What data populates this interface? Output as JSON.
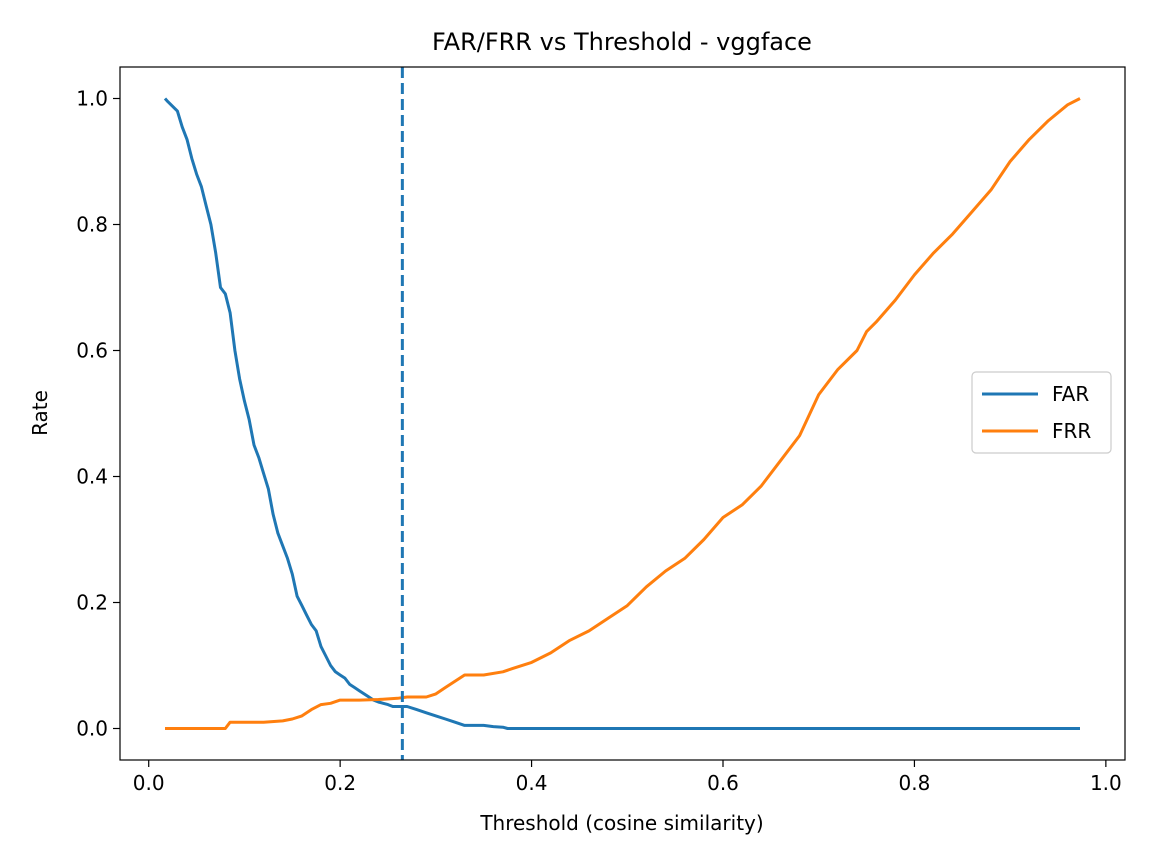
{
  "chart_data": {
    "type": "line",
    "title": "FAR/FRR vs Threshold - vggface",
    "xlabel": "Threshold (cosine similarity)",
    "ylabel": "Rate",
    "xlim": [
      -0.03,
      1.02
    ],
    "ylim": [
      -0.05,
      1.05
    ],
    "xticks": [
      0.0,
      0.2,
      0.4,
      0.6,
      0.8,
      1.0
    ],
    "xtick_labels": [
      "0.0",
      "0.2",
      "0.4",
      "0.6",
      "0.8",
      "1.0"
    ],
    "yticks": [
      0.0,
      0.2,
      0.4,
      0.6,
      0.8,
      1.0
    ],
    "ytick_labels": [
      "0.0",
      "0.2",
      "0.4",
      "0.6",
      "0.8",
      "1.0"
    ],
    "grid": false,
    "legend_position": "center-right",
    "threshold_line": {
      "x": 0.265,
      "style": "dashed",
      "color": "#1f77b4"
    },
    "series": [
      {
        "name": "FAR",
        "color": "#1f77b4",
        "x": [
          0.017,
          0.02,
          0.03,
          0.035,
          0.04,
          0.045,
          0.05,
          0.055,
          0.06,
          0.065,
          0.07,
          0.075,
          0.08,
          0.085,
          0.09,
          0.095,
          0.1,
          0.105,
          0.11,
          0.115,
          0.12,
          0.125,
          0.13,
          0.135,
          0.14,
          0.145,
          0.15,
          0.155,
          0.16,
          0.165,
          0.17,
          0.175,
          0.18,
          0.185,
          0.19,
          0.195,
          0.2,
          0.205,
          0.21,
          0.215,
          0.22,
          0.225,
          0.23,
          0.235,
          0.24,
          0.245,
          0.25,
          0.255,
          0.26,
          0.265,
          0.27,
          0.28,
          0.29,
          0.3,
          0.31,
          0.32,
          0.33,
          0.34,
          0.35,
          0.36,
          0.37,
          0.375,
          0.38,
          0.5,
          0.6,
          0.7,
          0.8,
          0.9,
          0.973
        ],
        "y": [
          1.0,
          0.995,
          0.98,
          0.955,
          0.935,
          0.905,
          0.88,
          0.86,
          0.83,
          0.8,
          0.755,
          0.7,
          0.69,
          0.66,
          0.6,
          0.555,
          0.52,
          0.49,
          0.45,
          0.43,
          0.405,
          0.38,
          0.34,
          0.31,
          0.29,
          0.27,
          0.245,
          0.21,
          0.195,
          0.18,
          0.165,
          0.155,
          0.13,
          0.115,
          0.1,
          0.09,
          0.085,
          0.08,
          0.07,
          0.065,
          0.06,
          0.055,
          0.05,
          0.045,
          0.042,
          0.04,
          0.038,
          0.035,
          0.035,
          0.035,
          0.035,
          0.03,
          0.025,
          0.02,
          0.015,
          0.01,
          0.005,
          0.005,
          0.005,
          0.003,
          0.002,
          0.0,
          0.0,
          0.0,
          0.0,
          0.0,
          0.0,
          0.0,
          0.0
        ]
      },
      {
        "name": "FRR",
        "color": "#ff7f0e",
        "x": [
          0.017,
          0.05,
          0.08,
          0.085,
          0.1,
          0.12,
          0.14,
          0.15,
          0.16,
          0.17,
          0.18,
          0.19,
          0.2,
          0.22,
          0.24,
          0.26,
          0.27,
          0.28,
          0.29,
          0.3,
          0.31,
          0.32,
          0.33,
          0.35,
          0.37,
          0.38,
          0.4,
          0.42,
          0.44,
          0.46,
          0.48,
          0.5,
          0.52,
          0.54,
          0.56,
          0.58,
          0.6,
          0.62,
          0.64,
          0.66,
          0.68,
          0.7,
          0.72,
          0.74,
          0.75,
          0.76,
          0.78,
          0.8,
          0.82,
          0.84,
          0.86,
          0.88,
          0.9,
          0.92,
          0.94,
          0.96,
          0.973
        ],
        "y": [
          0.0,
          0.0,
          0.0,
          0.01,
          0.01,
          0.01,
          0.012,
          0.015,
          0.02,
          0.03,
          0.038,
          0.04,
          0.045,
          0.045,
          0.046,
          0.048,
          0.05,
          0.05,
          0.05,
          0.055,
          0.065,
          0.075,
          0.085,
          0.085,
          0.09,
          0.095,
          0.105,
          0.12,
          0.14,
          0.155,
          0.175,
          0.195,
          0.225,
          0.25,
          0.27,
          0.3,
          0.335,
          0.355,
          0.385,
          0.425,
          0.465,
          0.53,
          0.57,
          0.6,
          0.63,
          0.645,
          0.68,
          0.72,
          0.755,
          0.785,
          0.82,
          0.855,
          0.9,
          0.935,
          0.965,
          0.99,
          1.0
        ]
      }
    ]
  }
}
